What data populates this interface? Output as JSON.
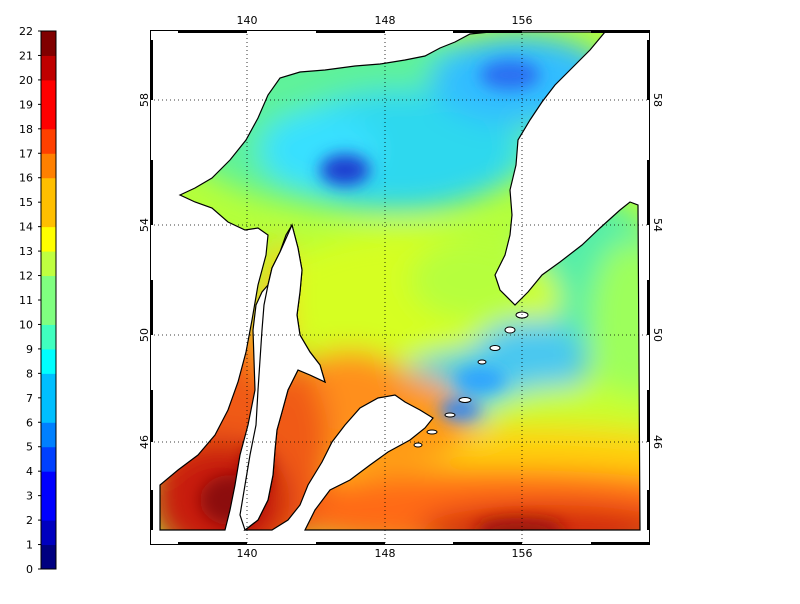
{
  "colorbar": {
    "min": 0,
    "max": 22,
    "ticks": [
      "22",
      "21",
      "20",
      "19",
      "18",
      "17",
      "16",
      "15",
      "14",
      "13",
      "12",
      "11",
      "10",
      "9",
      "8",
      "7",
      "6",
      "5",
      "4",
      "3",
      "2",
      "1",
      "0"
    ],
    "colors": [
      "#000080",
      "#0000bf",
      "#0000ff",
      "#0040ff",
      "#0080ff",
      "#00bfff",
      "#00ffff",
      "#40ffbf",
      "#80ff80",
      "#bfff40",
      "#ffff00",
      "#ffbf00",
      "#ff8000",
      "#ff4000",
      "#ff0000",
      "#bf0000",
      "#800000"
    ]
  },
  "map": {
    "lon_ticks": [
      "140",
      "148",
      "156"
    ],
    "lat_ticks": [
      "58",
      "54",
      "50",
      "46"
    ],
    "colors": {
      "land": "#ffffff",
      "coastline": "#000000",
      "cold_deep": "#1f3fd0",
      "cold": "#2fb6ff",
      "cyan": "#33ddff",
      "green": "#9dff5c",
      "yellow": "#e8ff1e",
      "orange": "#ff8a1e",
      "red": "#e8361a",
      "dark_red": "#8c0a0a"
    }
  }
}
